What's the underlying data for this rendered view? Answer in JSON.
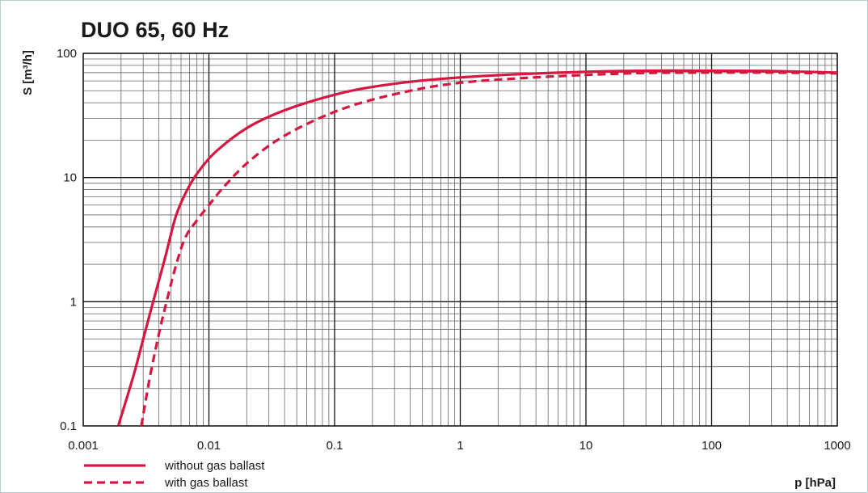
{
  "chart_data": {
    "type": "line",
    "title": "DUO 65, 60 Hz",
    "xlabel": "p [hPa]",
    "ylabel": "S [m³/h]",
    "xscale": "log",
    "yscale": "log",
    "xlim": [
      0.001,
      1000
    ],
    "ylim": [
      0.1,
      100
    ],
    "x_ticks": [
      "0.001",
      "0.01",
      "0.1",
      "1",
      "10",
      "100",
      "1000"
    ],
    "y_ticks": [
      "0.1",
      "1",
      "10",
      "100"
    ],
    "grid": true,
    "legend_position": "bottom-left",
    "series": [
      {
        "name": "without gas ballast",
        "style": "solid",
        "color": "#d6173f",
        "x": [
          0.0019,
          0.0025,
          0.003,
          0.0036,
          0.0045,
          0.0055,
          0.007,
          0.009,
          0.012,
          0.02,
          0.035,
          0.07,
          0.15,
          0.4,
          1,
          3,
          10,
          30,
          100,
          300,
          1000
        ],
        "y": [
          0.1,
          0.25,
          0.5,
          1.0,
          2.3,
          5.0,
          8.6,
          12.5,
          17.0,
          25.0,
          33.0,
          42.0,
          51.0,
          59.0,
          64.0,
          68.0,
          71.0,
          72.5,
          72.5,
          72.0,
          70.0
        ]
      },
      {
        "name": "with gas ballast",
        "style": "dashed",
        "color": "#d6173f",
        "x": [
          0.0029,
          0.0034,
          0.004,
          0.0046,
          0.0055,
          0.0065,
          0.008,
          0.01,
          0.013,
          0.02,
          0.035,
          0.07,
          0.15,
          0.4,
          1,
          3,
          10,
          30,
          100,
          300,
          1000
        ],
        "y": [
          0.1,
          0.25,
          0.55,
          1.0,
          2.0,
          3.3,
          4.5,
          6.0,
          8.3,
          13.0,
          20.0,
          29.0,
          39.0,
          50.0,
          58.0,
          63.0,
          67.0,
          69.5,
          70.0,
          70.0,
          69.0
        ]
      }
    ]
  }
}
